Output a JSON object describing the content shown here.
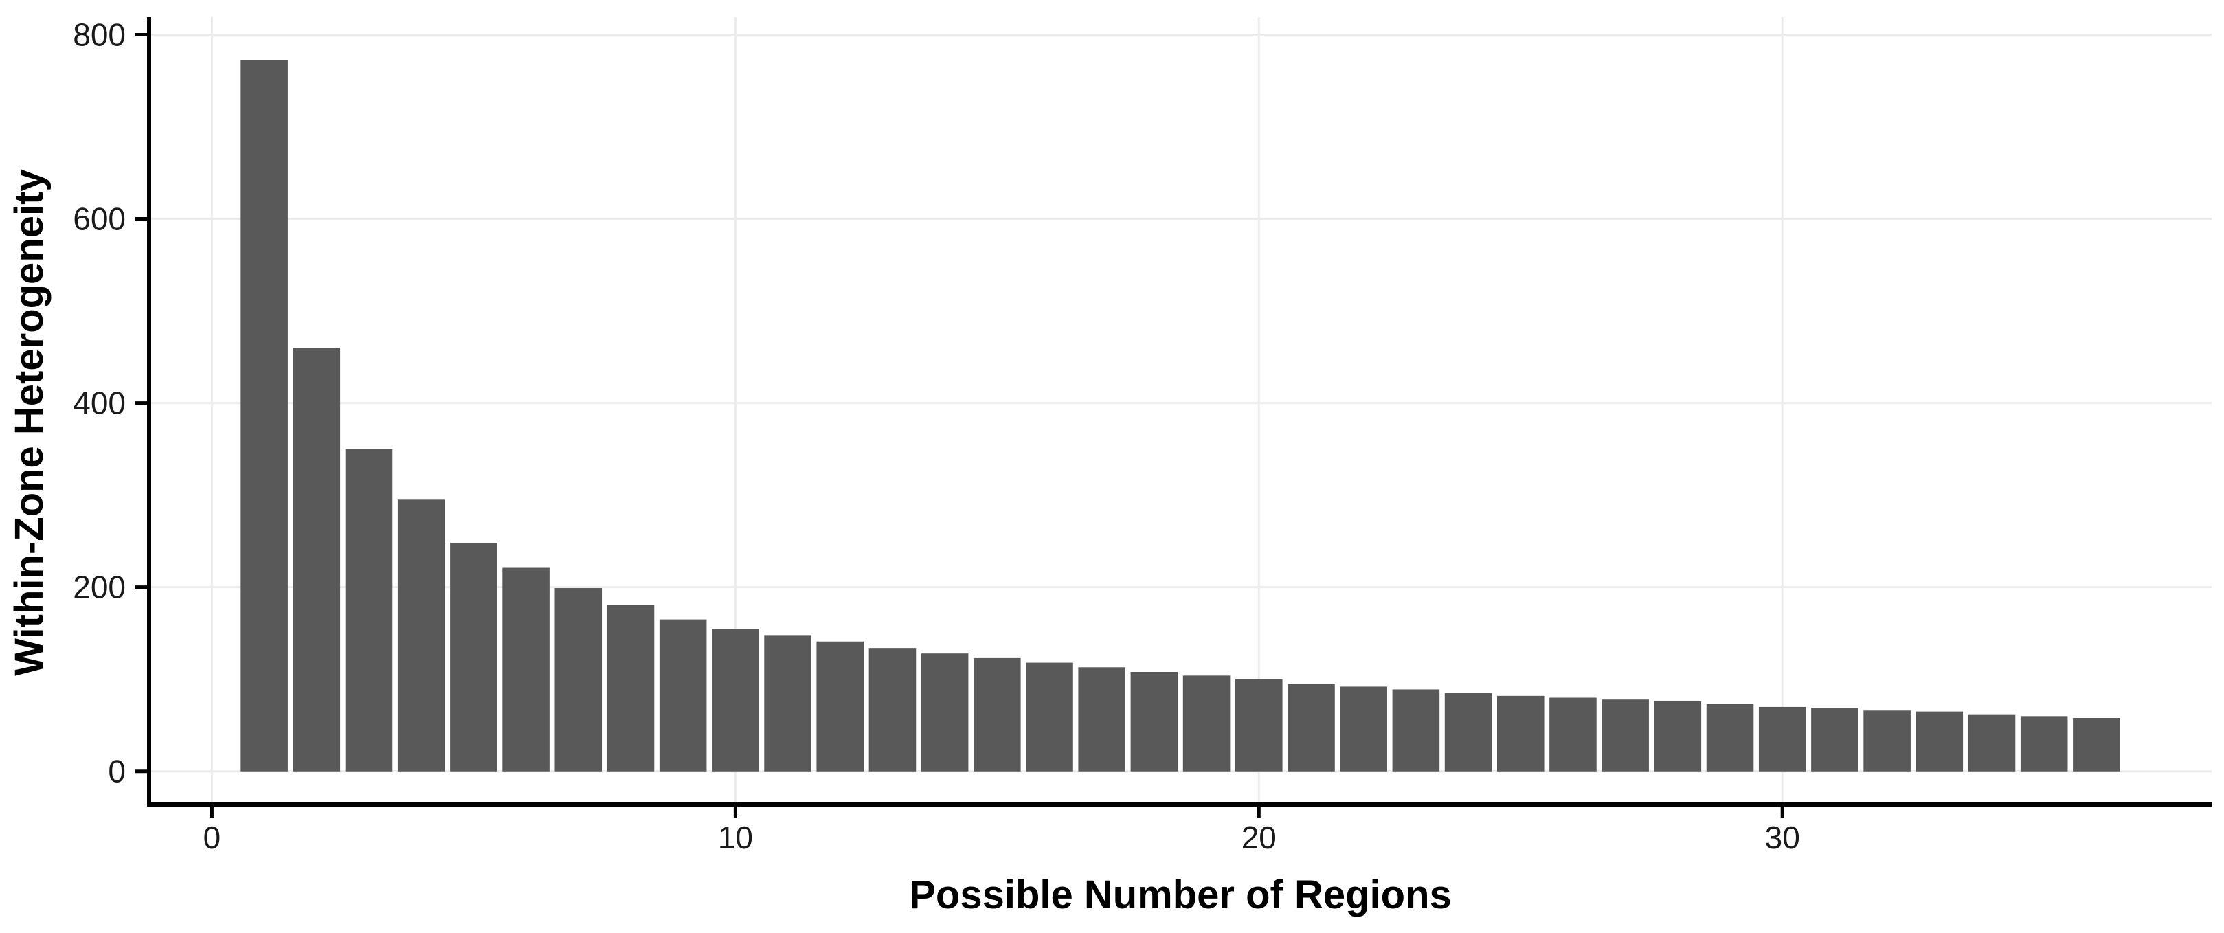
{
  "chart_data": {
    "type": "bar",
    "title": "",
    "xlabel": "Possible Number of Regions",
    "ylabel": "Within-Zone Heterogeneity",
    "x": [
      1,
      2,
      3,
      4,
      5,
      6,
      7,
      8,
      9,
      10,
      11,
      12,
      13,
      14,
      15,
      16,
      17,
      18,
      19,
      20,
      21,
      22,
      23,
      24,
      25,
      26,
      27,
      28,
      29,
      30,
      31,
      32,
      33,
      34,
      35,
      36
    ],
    "values": [
      772,
      460,
      350,
      295,
      248,
      221,
      199,
      181,
      165,
      155,
      148,
      141,
      134,
      128,
      123,
      118,
      113,
      108,
      104,
      100,
      95,
      92,
      89,
      85,
      82,
      80,
      78,
      76,
      73,
      70,
      69,
      66,
      65,
      62,
      60,
      58
    ],
    "x_ticks": [
      0,
      10,
      20,
      30
    ],
    "y_ticks": [
      0,
      200,
      400,
      600,
      800
    ],
    "xlim": [
      -1.2,
      38.2
    ],
    "ylim": [
      -36,
      819
    ],
    "bar_width_fraction": 0.9,
    "grid": "major-only",
    "legend": "none",
    "colors": {
      "bar_fill": "#595959",
      "grid_line": "#ececec",
      "axis_line": "#000000",
      "tick_mark": "#000000",
      "tick_label": "#1a1a1a",
      "axis_title": "#000000",
      "background": "#ffffff"
    }
  }
}
